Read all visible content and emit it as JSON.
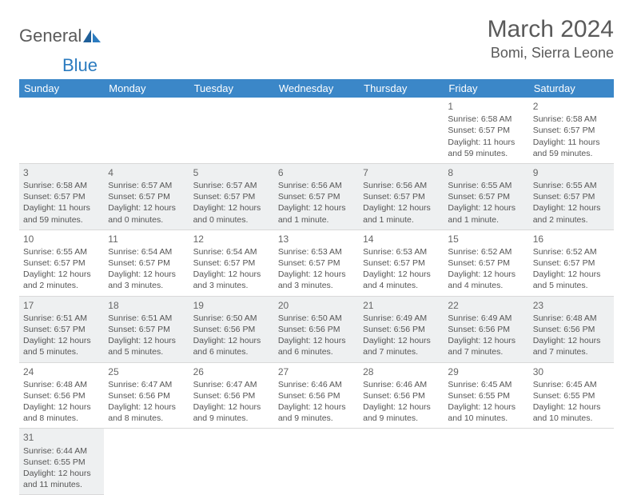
{
  "logo": {
    "text1": "General",
    "text2": "Blue"
  },
  "title": "March 2024",
  "location": "Bomi, Sierra Leone",
  "colors": {
    "header_bg": "#3b87c8",
    "header_fg": "#ffffff",
    "row_alt_bg": "#eef0f1",
    "row_plain_bg": "#ffffff",
    "border": "#d9d9d9",
    "text": "#555555",
    "logo_accent": "#2b7bbf"
  },
  "dayHeaders": [
    "Sunday",
    "Monday",
    "Tuesday",
    "Wednesday",
    "Thursday",
    "Friday",
    "Saturday"
  ],
  "weeks": [
    [
      null,
      null,
      null,
      null,
      null,
      {
        "n": "1",
        "sunrise": "Sunrise: 6:58 AM",
        "sunset": "Sunset: 6:57 PM",
        "daylight": "Daylight: 11 hours and 59 minutes."
      },
      {
        "n": "2",
        "sunrise": "Sunrise: 6:58 AM",
        "sunset": "Sunset: 6:57 PM",
        "daylight": "Daylight: 11 hours and 59 minutes."
      }
    ],
    [
      {
        "n": "3",
        "sunrise": "Sunrise: 6:58 AM",
        "sunset": "Sunset: 6:57 PM",
        "daylight": "Daylight: 11 hours and 59 minutes."
      },
      {
        "n": "4",
        "sunrise": "Sunrise: 6:57 AM",
        "sunset": "Sunset: 6:57 PM",
        "daylight": "Daylight: 12 hours and 0 minutes."
      },
      {
        "n": "5",
        "sunrise": "Sunrise: 6:57 AM",
        "sunset": "Sunset: 6:57 PM",
        "daylight": "Daylight: 12 hours and 0 minutes."
      },
      {
        "n": "6",
        "sunrise": "Sunrise: 6:56 AM",
        "sunset": "Sunset: 6:57 PM",
        "daylight": "Daylight: 12 hours and 1 minute."
      },
      {
        "n": "7",
        "sunrise": "Sunrise: 6:56 AM",
        "sunset": "Sunset: 6:57 PM",
        "daylight": "Daylight: 12 hours and 1 minute."
      },
      {
        "n": "8",
        "sunrise": "Sunrise: 6:55 AM",
        "sunset": "Sunset: 6:57 PM",
        "daylight": "Daylight: 12 hours and 1 minute."
      },
      {
        "n": "9",
        "sunrise": "Sunrise: 6:55 AM",
        "sunset": "Sunset: 6:57 PM",
        "daylight": "Daylight: 12 hours and 2 minutes."
      }
    ],
    [
      {
        "n": "10",
        "sunrise": "Sunrise: 6:55 AM",
        "sunset": "Sunset: 6:57 PM",
        "daylight": "Daylight: 12 hours and 2 minutes."
      },
      {
        "n": "11",
        "sunrise": "Sunrise: 6:54 AM",
        "sunset": "Sunset: 6:57 PM",
        "daylight": "Daylight: 12 hours and 3 minutes."
      },
      {
        "n": "12",
        "sunrise": "Sunrise: 6:54 AM",
        "sunset": "Sunset: 6:57 PM",
        "daylight": "Daylight: 12 hours and 3 minutes."
      },
      {
        "n": "13",
        "sunrise": "Sunrise: 6:53 AM",
        "sunset": "Sunset: 6:57 PM",
        "daylight": "Daylight: 12 hours and 3 minutes."
      },
      {
        "n": "14",
        "sunrise": "Sunrise: 6:53 AM",
        "sunset": "Sunset: 6:57 PM",
        "daylight": "Daylight: 12 hours and 4 minutes."
      },
      {
        "n": "15",
        "sunrise": "Sunrise: 6:52 AM",
        "sunset": "Sunset: 6:57 PM",
        "daylight": "Daylight: 12 hours and 4 minutes."
      },
      {
        "n": "16",
        "sunrise": "Sunrise: 6:52 AM",
        "sunset": "Sunset: 6:57 PM",
        "daylight": "Daylight: 12 hours and 5 minutes."
      }
    ],
    [
      {
        "n": "17",
        "sunrise": "Sunrise: 6:51 AM",
        "sunset": "Sunset: 6:57 PM",
        "daylight": "Daylight: 12 hours and 5 minutes."
      },
      {
        "n": "18",
        "sunrise": "Sunrise: 6:51 AM",
        "sunset": "Sunset: 6:57 PM",
        "daylight": "Daylight: 12 hours and 5 minutes."
      },
      {
        "n": "19",
        "sunrise": "Sunrise: 6:50 AM",
        "sunset": "Sunset: 6:56 PM",
        "daylight": "Daylight: 12 hours and 6 minutes."
      },
      {
        "n": "20",
        "sunrise": "Sunrise: 6:50 AM",
        "sunset": "Sunset: 6:56 PM",
        "daylight": "Daylight: 12 hours and 6 minutes."
      },
      {
        "n": "21",
        "sunrise": "Sunrise: 6:49 AM",
        "sunset": "Sunset: 6:56 PM",
        "daylight": "Daylight: 12 hours and 7 minutes."
      },
      {
        "n": "22",
        "sunrise": "Sunrise: 6:49 AM",
        "sunset": "Sunset: 6:56 PM",
        "daylight": "Daylight: 12 hours and 7 minutes."
      },
      {
        "n": "23",
        "sunrise": "Sunrise: 6:48 AM",
        "sunset": "Sunset: 6:56 PM",
        "daylight": "Daylight: 12 hours and 7 minutes."
      }
    ],
    [
      {
        "n": "24",
        "sunrise": "Sunrise: 6:48 AM",
        "sunset": "Sunset: 6:56 PM",
        "daylight": "Daylight: 12 hours and 8 minutes."
      },
      {
        "n": "25",
        "sunrise": "Sunrise: 6:47 AM",
        "sunset": "Sunset: 6:56 PM",
        "daylight": "Daylight: 12 hours and 8 minutes."
      },
      {
        "n": "26",
        "sunrise": "Sunrise: 6:47 AM",
        "sunset": "Sunset: 6:56 PM",
        "daylight": "Daylight: 12 hours and 9 minutes."
      },
      {
        "n": "27",
        "sunrise": "Sunrise: 6:46 AM",
        "sunset": "Sunset: 6:56 PM",
        "daylight": "Daylight: 12 hours and 9 minutes."
      },
      {
        "n": "28",
        "sunrise": "Sunrise: 6:46 AM",
        "sunset": "Sunset: 6:56 PM",
        "daylight": "Daylight: 12 hours and 9 minutes."
      },
      {
        "n": "29",
        "sunrise": "Sunrise: 6:45 AM",
        "sunset": "Sunset: 6:55 PM",
        "daylight": "Daylight: 12 hours and 10 minutes."
      },
      {
        "n": "30",
        "sunrise": "Sunrise: 6:45 AM",
        "sunset": "Sunset: 6:55 PM",
        "daylight": "Daylight: 12 hours and 10 minutes."
      }
    ],
    [
      {
        "n": "31",
        "sunrise": "Sunrise: 6:44 AM",
        "sunset": "Sunset: 6:55 PM",
        "daylight": "Daylight: 12 hours and 11 minutes."
      },
      null,
      null,
      null,
      null,
      null,
      null
    ]
  ]
}
